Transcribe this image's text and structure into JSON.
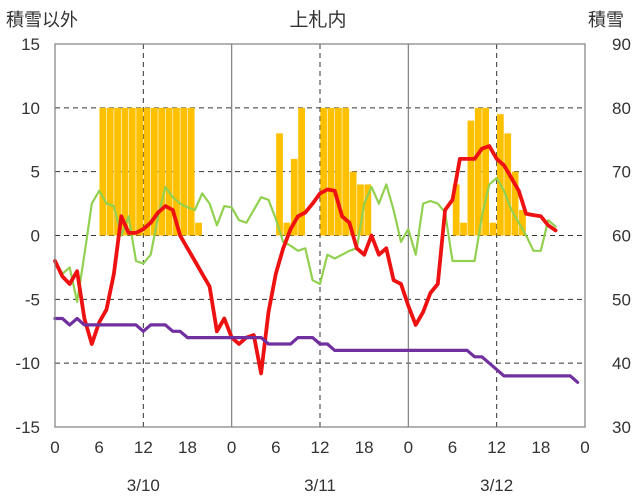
{
  "chart_data": {
    "type": "combo",
    "title": "上札内",
    "ylabel_left": "積雪以外",
    "ylabel_right": "積雪",
    "ylim_left": [
      -15,
      15
    ],
    "yticks_left": [
      -15,
      -10,
      -5,
      0,
      5,
      10,
      15
    ],
    "ylim_right": [
      30,
      90
    ],
    "yticks_right": [
      30,
      40,
      50,
      60,
      70,
      80,
      90
    ],
    "x_range": [
      0,
      72
    ],
    "x_tick_labels": [
      "0",
      "6",
      "12",
      "18",
      "0",
      "6",
      "12",
      "18",
      "0",
      "6",
      "12",
      "18",
      "0"
    ],
    "day_labels": [
      "3/10",
      "3/11",
      "3/12"
    ],
    "colors": {
      "red": "#ee1111",
      "green": "#92d050",
      "purple": "#7030a0",
      "bar": "#ffc000"
    },
    "bars": {
      "name": "積雪",
      "axis": "right",
      "x": [
        6,
        7,
        8,
        9,
        10,
        11,
        12,
        13,
        14,
        15,
        16,
        17,
        18,
        19,
        30,
        31,
        32,
        33,
        36,
        37,
        38,
        39,
        40,
        41,
        42,
        54,
        55,
        56,
        57,
        58,
        59,
        60,
        61,
        62,
        63
      ],
      "values": [
        80,
        80,
        80,
        80,
        80,
        80,
        80,
        80,
        80,
        80,
        80,
        80,
        80,
        62,
        76,
        62,
        72,
        80,
        80,
        80,
        80,
        80,
        70,
        68,
        68,
        68,
        62,
        78,
        80,
        80,
        62,
        79,
        76,
        70,
        64
      ]
    },
    "series": [
      {
        "name": "red",
        "axis": "left",
        "color": "#ee1111",
        "x": [
          0,
          1,
          2,
          3,
          4,
          5,
          6,
          7,
          8,
          9,
          10,
          11,
          12,
          13,
          14,
          15,
          16,
          17,
          18,
          19,
          20,
          21,
          22,
          23,
          24,
          25,
          26,
          27,
          28,
          29,
          30,
          31,
          32,
          33,
          34,
          35,
          36,
          37,
          38,
          39,
          40,
          41,
          42,
          43,
          44,
          45,
          46,
          47,
          48,
          49,
          50,
          51,
          52,
          53,
          54,
          55,
          56,
          57,
          58,
          59,
          60,
          61,
          62,
          63,
          64,
          65,
          66,
          67,
          68,
          69,
          70,
          71
        ],
        "values": [
          -2,
          -3.2,
          -3.8,
          -2.8,
          -6.5,
          -8.5,
          -6.8,
          -5.8,
          -3,
          1.5,
          0.2,
          0.2,
          0.5,
          1,
          1.8,
          2.3,
          2,
          0,
          -1,
          -2,
          -3,
          -4,
          -7.5,
          -6.5,
          -8,
          -8.5,
          -8,
          -7.8,
          -10.8,
          -6,
          -3,
          -1,
          0.5,
          1.5,
          1.8,
          2.5,
          3.3,
          3.6,
          3.5,
          1.5,
          1,
          -1,
          -1.5,
          0,
          -1.5,
          -1,
          -3.5,
          -3.8,
          -5.5,
          -7,
          -6,
          -4.5,
          -3.8,
          2,
          2.8,
          6,
          6,
          6,
          6.8,
          7,
          6,
          5.5,
          4.5,
          3.5,
          1.7,
          1.6,
          1.5,
          0.8,
          0.4,
          null,
          null,
          null
        ]
      },
      {
        "name": "green",
        "axis": "left",
        "color": "#92d050",
        "x": [
          0,
          1,
          2,
          3,
          4,
          5,
          6,
          7,
          8,
          9,
          10,
          11,
          12,
          13,
          14,
          15,
          16,
          17,
          18,
          19,
          20,
          21,
          22,
          23,
          24,
          25,
          26,
          27,
          28,
          29,
          30,
          31,
          32,
          33,
          34,
          35,
          36,
          37,
          38,
          39,
          40,
          41,
          42,
          43,
          44,
          45,
          46,
          47,
          48,
          49,
          50,
          51,
          52,
          53,
          54,
          55,
          56,
          57,
          58,
          59,
          60,
          61,
          62,
          63,
          64,
          65,
          66,
          67,
          68,
          69,
          70,
          71
        ],
        "values": [
          -2,
          -3,
          -2.5,
          -5.2,
          -1.5,
          2.5,
          3.5,
          2.5,
          2.3,
          0,
          1.5,
          -2,
          -2.2,
          -1.5,
          1.5,
          3.8,
          3,
          2.5,
          2.2,
          2,
          3.3,
          2.5,
          0.8,
          2.3,
          2.2,
          1.2,
          1,
          2,
          3,
          2.8,
          1.3,
          -0.5,
          -0.8,
          -1.2,
          -1,
          -3.5,
          -3.8,
          -1.5,
          -1.8,
          -1.5,
          -1.2,
          -1,
          2.5,
          3.8,
          2.5,
          4,
          2,
          -0.5,
          0.5,
          -1.5,
          2.5,
          2.7,
          2.5,
          1.8,
          -2,
          -2,
          -2,
          -2,
          1.5,
          4,
          4.5,
          3.5,
          2,
          1,
          0,
          -1.2,
          -1.2,
          1.2,
          0.7,
          null,
          null,
          null
        ]
      },
      {
        "name": "purple",
        "axis": "left",
        "color": "#7030a0",
        "x": [
          0,
          1,
          2,
          3,
          4,
          5,
          6,
          7,
          8,
          9,
          10,
          11,
          12,
          13,
          14,
          15,
          16,
          17,
          18,
          19,
          20,
          21,
          22,
          23,
          24,
          25,
          26,
          27,
          28,
          29,
          30,
          31,
          32,
          33,
          34,
          35,
          36,
          37,
          38,
          39,
          40,
          41,
          42,
          43,
          44,
          45,
          46,
          47,
          48,
          49,
          50,
          51,
          52,
          53,
          54,
          55,
          56,
          57,
          58,
          59,
          60,
          61,
          62,
          63,
          64,
          65,
          66,
          67,
          68,
          69,
          70,
          71
        ],
        "values": [
          -6.5,
          -6.5,
          -7,
          -6.5,
          -7,
          -7,
          -7,
          -7,
          -7,
          -7,
          -7,
          -7,
          -7.5,
          -7,
          -7,
          -7,
          -7.5,
          -7.5,
          -8,
          -8,
          -8,
          -8,
          -8,
          -8,
          -8,
          -8,
          -8,
          -8,
          -8,
          -8.5,
          -8.5,
          -8.5,
          -8.5,
          -8,
          -8,
          -8,
          -8.5,
          -8.5,
          -9,
          -9,
          -9,
          -9,
          -9,
          -9,
          -9,
          -9,
          -9,
          -9,
          -9,
          -9,
          -9,
          -9,
          -9,
          -9,
          -9,
          -9,
          -9,
          -9.5,
          -9.5,
          -10,
          -10.5,
          -11,
          -11,
          -11,
          -11,
          -11,
          -11,
          -11,
          -11,
          -11,
          -11,
          -11.5
        ]
      }
    ]
  }
}
